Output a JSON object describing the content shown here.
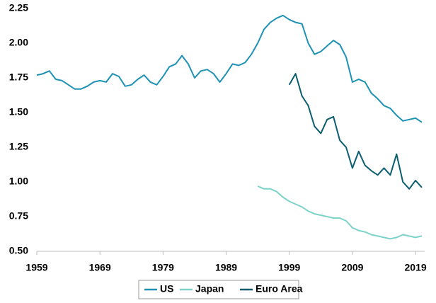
{
  "chart_data": {
    "type": "line",
    "x": [
      1959,
      1960,
      1961,
      1962,
      1963,
      1964,
      1965,
      1966,
      1967,
      1968,
      1969,
      1970,
      1971,
      1972,
      1973,
      1974,
      1975,
      1976,
      1977,
      1978,
      1979,
      1980,
      1981,
      1982,
      1983,
      1984,
      1985,
      1986,
      1987,
      1988,
      1989,
      1990,
      1991,
      1992,
      1993,
      1994,
      1995,
      1996,
      1997,
      1998,
      1999,
      2000,
      2001,
      2002,
      2003,
      2004,
      2005,
      2006,
      2007,
      2008,
      2009,
      2010,
      2011,
      2012,
      2013,
      2014,
      2015,
      2016,
      2017,
      2018,
      2019,
      2020
    ],
    "series": [
      {
        "name": "US",
        "color": "#1e92b4",
        "values": [
          1.77,
          1.78,
          1.8,
          1.74,
          1.73,
          1.7,
          1.67,
          1.67,
          1.69,
          1.72,
          1.73,
          1.72,
          1.78,
          1.76,
          1.69,
          1.7,
          1.74,
          1.77,
          1.72,
          1.7,
          1.76,
          1.83,
          1.85,
          1.91,
          1.85,
          1.75,
          1.8,
          1.81,
          1.78,
          1.72,
          1.78,
          1.85,
          1.84,
          1.86,
          1.92,
          2.0,
          2.1,
          2.15,
          2.18,
          2.2,
          2.17,
          2.15,
          2.14,
          2.0,
          1.92,
          1.94,
          1.98,
          2.02,
          1.99,
          1.9,
          1.72,
          1.74,
          1.72,
          1.64,
          1.6,
          1.55,
          1.53,
          1.48,
          1.44,
          1.45,
          1.46,
          1.43
        ]
      },
      {
        "name": "Japan",
        "color": "#7dd3c8",
        "values": [
          null,
          null,
          null,
          null,
          null,
          null,
          null,
          null,
          null,
          null,
          null,
          null,
          null,
          null,
          null,
          null,
          null,
          null,
          null,
          null,
          null,
          null,
          null,
          null,
          null,
          null,
          null,
          null,
          null,
          null,
          null,
          null,
          null,
          null,
          null,
          0.97,
          0.95,
          0.95,
          0.93,
          0.89,
          0.86,
          0.84,
          0.82,
          0.79,
          0.77,
          0.76,
          0.75,
          0.74,
          0.74,
          0.72,
          0.67,
          0.65,
          0.64,
          0.62,
          0.61,
          0.6,
          0.59,
          0.6,
          0.62,
          0.61,
          0.6,
          0.61
        ]
      },
      {
        "name": "Euro Area",
        "color": "#0b5e70",
        "values": [
          null,
          null,
          null,
          null,
          null,
          null,
          null,
          null,
          null,
          null,
          null,
          null,
          null,
          null,
          null,
          null,
          null,
          null,
          null,
          null,
          null,
          null,
          null,
          null,
          null,
          null,
          null,
          null,
          null,
          null,
          null,
          null,
          null,
          null,
          null,
          null,
          null,
          null,
          null,
          null,
          1.7,
          1.78,
          1.62,
          1.55,
          1.4,
          1.35,
          1.45,
          1.47,
          1.3,
          1.25,
          1.1,
          1.22,
          1.12,
          1.08,
          1.05,
          1.1,
          1.05,
          1.2,
          1.0,
          0.95,
          1.01,
          0.96
        ]
      }
    ],
    "xlim": [
      1959,
      2020
    ],
    "xticks": [
      1959,
      1969,
      1979,
      1989,
      1999,
      2009,
      2019
    ],
    "ylim": [
      0.5,
      2.25
    ],
    "yticks": [
      {
        "value": 0.5,
        "label": "0.50"
      },
      {
        "value": 0.75,
        "label": "0.75"
      },
      {
        "value": 1,
        "label": "1.00"
      },
      {
        "value": 1.25,
        "label": "1.25"
      },
      {
        "value": 1.5,
        "label": "1.50"
      },
      {
        "value": 1.75,
        "label": "1.75"
      },
      {
        "value": 2,
        "label": "2.00"
      },
      {
        "value": 2.25,
        "label": "2.25"
      }
    ],
    "legend": "bottom"
  }
}
